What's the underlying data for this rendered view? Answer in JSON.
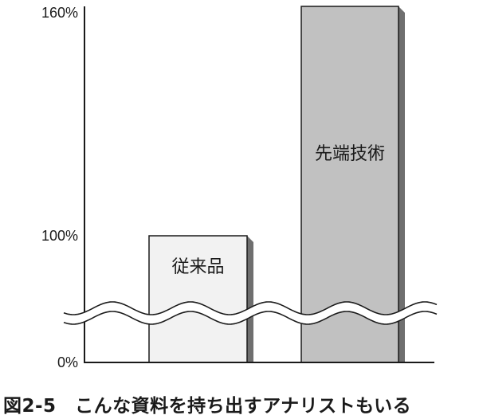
{
  "chart_data": {
    "type": "bar",
    "categories": [
      "従来品",
      "先端技術"
    ],
    "values": [
      100,
      160
    ],
    "yticks": [
      {
        "value": 0,
        "label": "0%"
      },
      {
        "value": 100,
        "label": "100%"
      },
      {
        "value": 160,
        "label": "160%"
      }
    ],
    "ylim": [
      0,
      160
    ],
    "axis_break": true,
    "grid": false,
    "colors": {
      "bar_1": "#f2f2f2",
      "bar_2": "#c1c1c1",
      "shadow": "#6f6f6f",
      "line": "#1a1a1a"
    }
  },
  "caption": {
    "figure_label": "図2-5",
    "text": "こんな資料を持ち出すアナリストもいる"
  }
}
